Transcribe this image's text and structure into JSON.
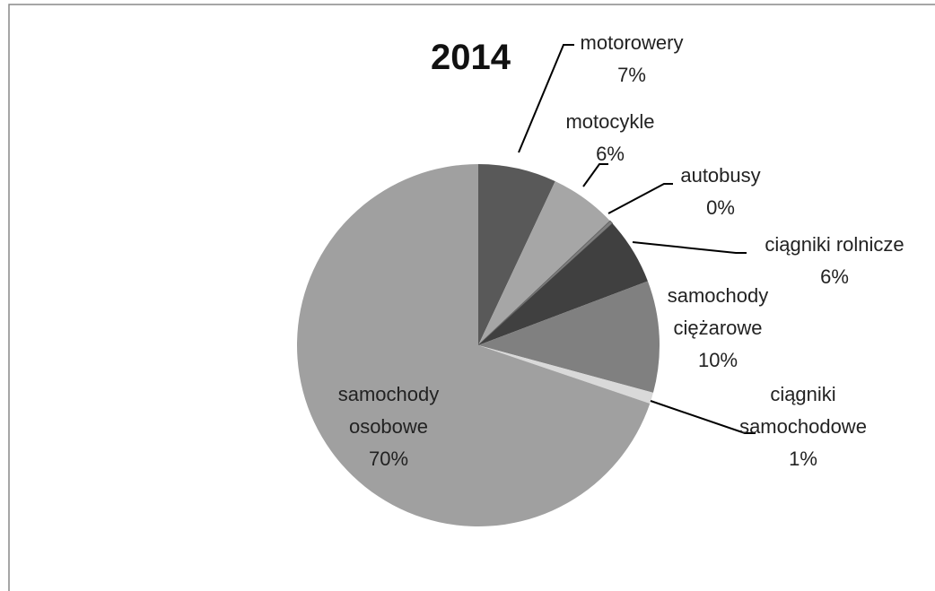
{
  "chart_data": {
    "type": "pie",
    "title": "2014",
    "categories": [
      "motorowery",
      "motocykle",
      "autobusy",
      "ciągniki rolnicze",
      "samochody ciężarowe",
      "ciągniki samochodowe",
      "samochody osobowe"
    ],
    "values": [
      7,
      6,
      0.3,
      6,
      10,
      1,
      70
    ],
    "value_labels": [
      "7%",
      "6%",
      "0%",
      "6%",
      "10%",
      "1%",
      "70%"
    ],
    "colors": [
      "#595959",
      "#a6a6a6",
      "#7f7f7f",
      "#404040",
      "#808080",
      "#d9d9d9",
      "#a0a0a0"
    ]
  }
}
